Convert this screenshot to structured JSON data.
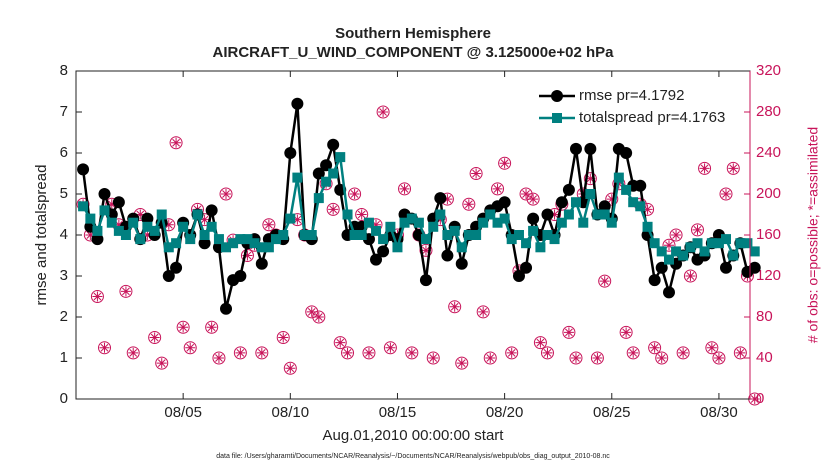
{
  "chart_data": {
    "type": "line",
    "title": "Southern Hemisphere",
    "subtitle": "AIRCRAFT_U_WIND_COMPONENT @ 3.125000e+02 hPa",
    "x_label": "Aug.01,2010 00:00:00 start",
    "y_label": "rmse and totalspread",
    "y2_label": "# of obs: o=possible; *=assimilated",
    "footnote": "data file: /Users/gharamti/Documents/NCAR/Reanalysis/~/Documents/NCAR/Reanalysis/webpub/obs_diag_output_2010-08.nc",
    "xlim": [
      0,
      31.45
    ],
    "xticks": [
      {
        "value": 5,
        "label": "08/05"
      },
      {
        "value": 10,
        "label": "08/10"
      },
      {
        "value": 15,
        "label": "08/15"
      },
      {
        "value": 20,
        "label": "08/20"
      },
      {
        "value": 25,
        "label": "08/25"
      },
      {
        "value": 30,
        "label": "08/30"
      }
    ],
    "ylim": [
      0,
      8
    ],
    "yticks": [
      0,
      1,
      2,
      3,
      4,
      5,
      6,
      7,
      8
    ],
    "y2lim": [
      0,
      320
    ],
    "y2ticks": [
      0,
      40,
      80,
      120,
      160,
      200,
      240,
      280,
      320
    ],
    "legend": "upper right",
    "grid": false,
    "x": [
      0.33,
      0.67,
      1,
      1.33,
      1.67,
      2,
      2.33,
      2.67,
      3,
      3.33,
      3.67,
      4,
      4.33,
      4.67,
      5,
      5.33,
      5.67,
      6,
      6.33,
      6.67,
      7,
      7.33,
      7.67,
      8,
      8.33,
      8.67,
      9,
      9.33,
      9.67,
      10,
      10.33,
      10.67,
      11,
      11.33,
      11.67,
      12,
      12.33,
      12.67,
      13,
      13.33,
      13.67,
      14,
      14.33,
      14.67,
      15,
      15.33,
      15.67,
      16,
      16.33,
      16.67,
      17,
      17.33,
      17.67,
      18,
      18.33,
      18.67,
      19,
      19.33,
      19.67,
      20,
      20.33,
      20.67,
      21,
      21.33,
      21.67,
      22,
      22.33,
      22.67,
      23,
      23.33,
      23.67,
      24,
      24.33,
      24.67,
      25,
      25.33,
      25.67,
      26,
      26.33,
      26.67,
      27,
      27.33,
      27.67,
      28,
      28.33,
      28.67,
      29,
      29.33,
      29.67,
      30,
      30.33,
      30.67,
      31,
      31.33,
      31.67
    ],
    "series": [
      {
        "name": "rmse pr=4.1792",
        "color": "#000000",
        "marker": "circle",
        "values": [
          5.6,
          4.2,
          3.9,
          5.0,
          4.5,
          4.8,
          4.2,
          4.4,
          3.9,
          4.4,
          4.0,
          4.3,
          3.0,
          3.2,
          4.3,
          4.0,
          4.5,
          3.8,
          4.6,
          3.7,
          2.2,
          2.9,
          3.0,
          3.8,
          3.9,
          3.3,
          3.9,
          4.0,
          3.9,
          6.0,
          7.2,
          4.0,
          3.9,
          5.5,
          5.7,
          6.2,
          5.1,
          4.0,
          4.2,
          4.2,
          3.9,
          3.4,
          3.6,
          4.0,
          3.9,
          4.5,
          4.4,
          4.0,
          2.9,
          4.4,
          4.9,
          3.5,
          4.2,
          3.3,
          4.0,
          4.2,
          4.4,
          4.6,
          4.7,
          4.8,
          4.0,
          3.0,
          3.2,
          4.4,
          4.0,
          4.5,
          4.0,
          4.8,
          5.1,
          6.1,
          4.8,
          6.1,
          4.5,
          4.7,
          4.4,
          6.1,
          6.0,
          5.2,
          5.2,
          4.0,
          2.9,
          3.2,
          2.6,
          3.3,
          3.5,
          3.7,
          3.4,
          3.5,
          3.8,
          4.0,
          3.2,
          3.5,
          3.8,
          3.1,
          3.2
        ]
      },
      {
        "name": "totalspread pr=4.1763",
        "color": "#008080",
        "marker": "square",
        "values": [
          4.7,
          4.4,
          4.1,
          4.6,
          4.3,
          4.1,
          4.0,
          4.3,
          3.9,
          4.2,
          4.1,
          4.5,
          3.7,
          3.8,
          4.2,
          3.9,
          4.5,
          4.0,
          4.2,
          3.9,
          3.7,
          3.8,
          3.9,
          3.9,
          3.8,
          3.7,
          3.7,
          3.9,
          4.0,
          4.4,
          5.4,
          4.0,
          4.0,
          4.9,
          5.3,
          5.5,
          5.9,
          4.5,
          4.0,
          4.0,
          4.3,
          4.1,
          3.9,
          4.2,
          3.7,
          4.3,
          4.4,
          4.3,
          3.9,
          4.2,
          4.5,
          4.0,
          4.1,
          3.7,
          4.0,
          4.0,
          4.3,
          4.5,
          4.3,
          4.4,
          3.9,
          4.0,
          3.8,
          4.1,
          3.7,
          4.0,
          3.9,
          4.3,
          4.5,
          4.8,
          4.3,
          5.0,
          4.5,
          4.5,
          4.3,
          5.4,
          5.1,
          4.8,
          4.7,
          4.2,
          3.8,
          3.6,
          3.4,
          3.6,
          3.5,
          3.7,
          3.8,
          3.6,
          3.8,
          3.8,
          3.9,
          3.5,
          3.8,
          3.8,
          3.6
        ]
      },
      {
        "color": "#c8145a",
        "marker": "o",
        "axis": "y2",
        "values": [
          190,
          160,
          100,
          50,
          190,
          170,
          105,
          45,
          180,
          160,
          60,
          35,
          170,
          250,
          70,
          50,
          185,
          175,
          70,
          40,
          200,
          155,
          45,
          140,
          150,
          45,
          170,
          160,
          60,
          30,
          175,
          160,
          85,
          80,
          210,
          185,
          55,
          45,
          200,
          180,
          45,
          170,
          280,
          50,
          160,
          205,
          45,
          160,
          145,
          40,
          175,
          195,
          90,
          35,
          190,
          220,
          85,
          40,
          205,
          230,
          45,
          125,
          200,
          195,
          55,
          45,
          180,
          190,
          65,
          40,
          200,
          215,
          40,
          115,
          195,
          210,
          65,
          45,
          190,
          185,
          50,
          40,
          150,
          160,
          45,
          120,
          165,
          225,
          50,
          40,
          200,
          225,
          45,
          120,
          0
        ]
      },
      {
        "color": "#c8145a",
        "marker": "*",
        "axis": "y2",
        "values": [
          190,
          160,
          100,
          50,
          190,
          170,
          105,
          45,
          180,
          160,
          60,
          35,
          170,
          250,
          70,
          50,
          185,
          175,
          70,
          40,
          200,
          155,
          45,
          140,
          150,
          45,
          170,
          160,
          60,
          30,
          175,
          160,
          85,
          80,
          210,
          185,
          55,
          45,
          200,
          180,
          45,
          170,
          280,
          50,
          160,
          205,
          45,
          160,
          145,
          40,
          175,
          195,
          90,
          35,
          190,
          220,
          85,
          40,
          205,
          230,
          45,
          125,
          200,
          195,
          55,
          45,
          180,
          190,
          65,
          40,
          200,
          215,
          40,
          115,
          195,
          210,
          65,
          45,
          190,
          185,
          50,
          40,
          150,
          160,
          45,
          120,
          165,
          225,
          50,
          40,
          200,
          225,
          45,
          120,
          0
        ]
      }
    ]
  }
}
